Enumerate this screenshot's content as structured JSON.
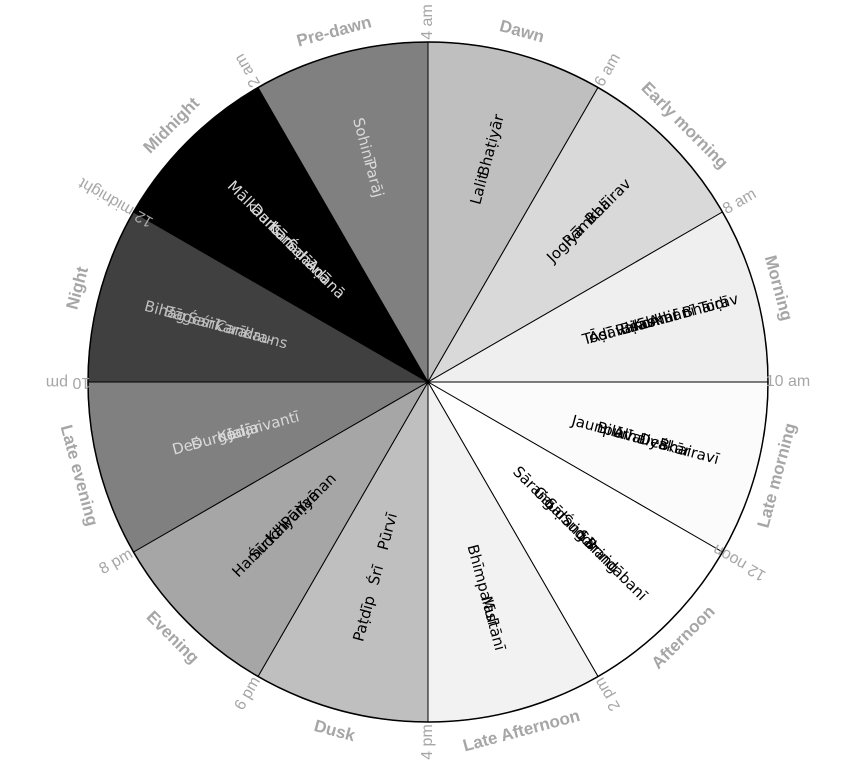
{
  "time_labels": [
    "4 am",
    "6 am",
    "8 am",
    "10 am",
    "12 noon",
    "2 pm",
    "4 pm",
    "6 pm",
    "8 pm",
    "10 pm",
    "12 midnight",
    "2 am"
  ],
  "segments": [
    {
      "period": "Dawn",
      "fill": "#bfbfbf",
      "text_color": "#000000",
      "ragas": [
        "Bhaṭiyār",
        "Lalit"
      ]
    },
    {
      "period": "Early morning",
      "fill": "#d9d9d9",
      "text_color": "#000000",
      "ragas": [
        "Bhairav",
        "Rāmkalī",
        "Jogiyā"
      ]
    },
    {
      "period": "Morning",
      "fill": "#efefef",
      "text_color": "#000000",
      "ragas": [
        "Ahir Bhairav",
        "Bilāskhānī Toḍī",
        "Komal",
        "Riṣab",
        "Āsāvarī",
        "Toḍī"
      ]
    },
    {
      "period": "Late morning",
      "fill": "#fbfbfb",
      "text_color": "#000000",
      "ragas": [
        "Bhairavī",
        "Deśkār",
        "Alhaiyā",
        "Bilāval",
        "Jaunpurī"
      ]
    },
    {
      "period": "Afternoon",
      "fill": "#ffffff",
      "text_color": "#000000",
      "ragas": [
        "Brindābanī",
        "Sāraṅg",
        "Śuddh",
        "Sāraṅg",
        "Gauḍ",
        "Sāraṅg"
      ]
    },
    {
      "period": "Late Afternoon",
      "fill": "#f2f2f2",
      "text_color": "#000000",
      "ragas": [
        "Multānī",
        "Bhīmpalāsī"
      ]
    },
    {
      "period": "Dusk",
      "fill": "#bfbfbf",
      "text_color": "#000000",
      "ragas": [
        "Paṭdīp",
        "Śrī",
        "Pūrvī"
      ]
    },
    {
      "period": "Evening",
      "fill": "#a6a6a6",
      "text_color": "#000000",
      "ragas": [
        "Hamīr",
        "Śuddh",
        "Kalyāṇ",
        "Pūriyā",
        "Yaman"
      ]
    },
    {
      "period": "Late evening",
      "fill": "#808080",
      "text_color": "#d9d9d9",
      "ragas": [
        "Deś",
        "Durgā",
        "Kedār",
        "Jaijaivantī"
      ]
    },
    {
      "period": "Night",
      "fill": "#404040",
      "text_color": "#bfbfbf",
      "ragas": [
        "Bihāg",
        "Bāgeśrī",
        "Śaṅkarā",
        "Candra-",
        "kauns"
      ]
    },
    {
      "period": "Midnight",
      "fill": "#000000",
      "text_color": "#d9d9d9",
      "ragas": [
        "Mālkauns",
        "Darbārī",
        "Kānaḍā",
        "Śahānā",
        "Aḍānā"
      ]
    },
    {
      "period": "Pre-dawn",
      "fill": "#808080",
      "text_color": "#d9d9d9",
      "ragas": [
        "Sohinī",
        "Parāj"
      ]
    }
  ]
}
